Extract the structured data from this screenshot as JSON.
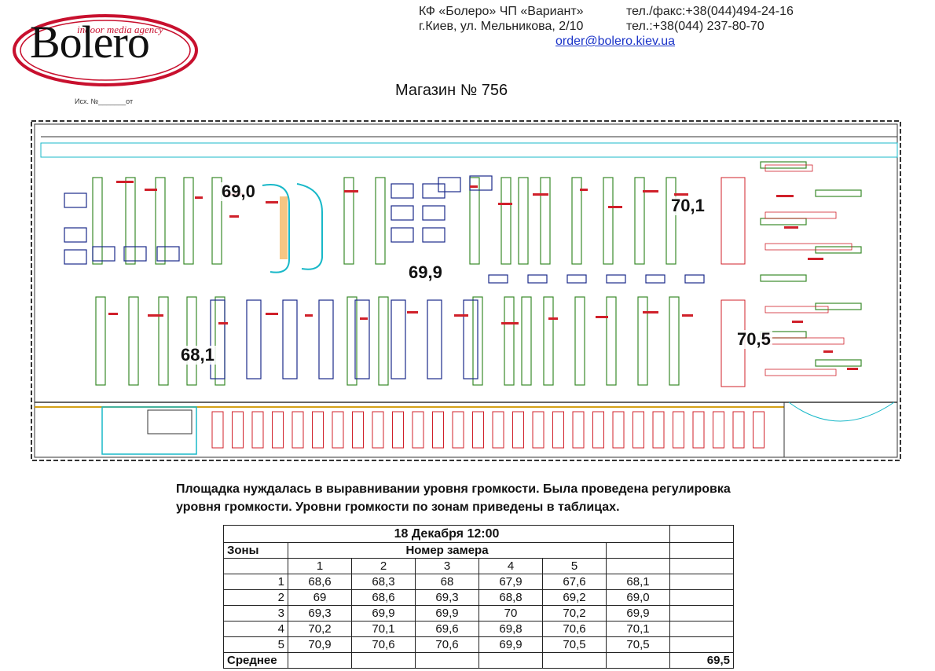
{
  "logo": {
    "word": "Bolero",
    "tagline": "indoor media agency"
  },
  "doc_ref": "Исх. №_______от",
  "header": {
    "company": "КФ «Болеро» ЧП «Вариант»",
    "address": "г.Киев, ул. Мельникова, 2/10",
    "phone1": "тел./факс:+38(044)494-24-16",
    "phone2": "тел.:+38(044) 237-80-70",
    "email": "order@bolero.kiev.ua"
  },
  "store_title": "Магазин № 756",
  "plan": {
    "zone_levels": [
      {
        "zone": "1",
        "level": "68,1"
      },
      {
        "zone": "2",
        "level": "69,0"
      },
      {
        "zone": "3",
        "level": "69,9"
      },
      {
        "zone": "4",
        "level": "70,1"
      },
      {
        "zone": "5",
        "level": "70,5"
      }
    ],
    "colors": {
      "walls": "#333333",
      "shelves": "#3a8a2a",
      "labels": "#d0202a",
      "fixtures": "#1a2a8a",
      "accents": "#18b8c8"
    }
  },
  "note": {
    "line1": "Площадка нуждалась в выравнивании уровня громкости. Была проведена регулировка",
    "line2": "уровня громкости. Уровни громкости по зонам приведены в таблицах."
  },
  "table": {
    "title": "18 Декабря 12:00",
    "zones_label": "Зоны",
    "measure_label": "Номер замера",
    "measure_numbers": [
      "1",
      "2",
      "3",
      "4",
      "5"
    ],
    "rows": [
      {
        "zone": "1",
        "values": [
          "68,6",
          "68,3",
          "68",
          "67,9",
          "67,6"
        ],
        "avg": "68,1"
      },
      {
        "zone": "2",
        "values": [
          "69",
          "68,6",
          "69,3",
          "68,8",
          "69,2"
        ],
        "avg": "69,0"
      },
      {
        "zone": "3",
        "values": [
          "69,3",
          "69,9",
          "69,9",
          "70",
          "70,2"
        ],
        "avg": "69,9"
      },
      {
        "zone": "4",
        "values": [
          "70,2",
          "70,1",
          "69,6",
          "69,8",
          "70,6"
        ],
        "avg": "70,1"
      },
      {
        "zone": "5",
        "values": [
          "70,9",
          "70,6",
          "70,6",
          "69,9",
          "70,5"
        ],
        "avg": "70,5"
      }
    ],
    "average_label": "Среднее",
    "average_value": "69,5"
  }
}
